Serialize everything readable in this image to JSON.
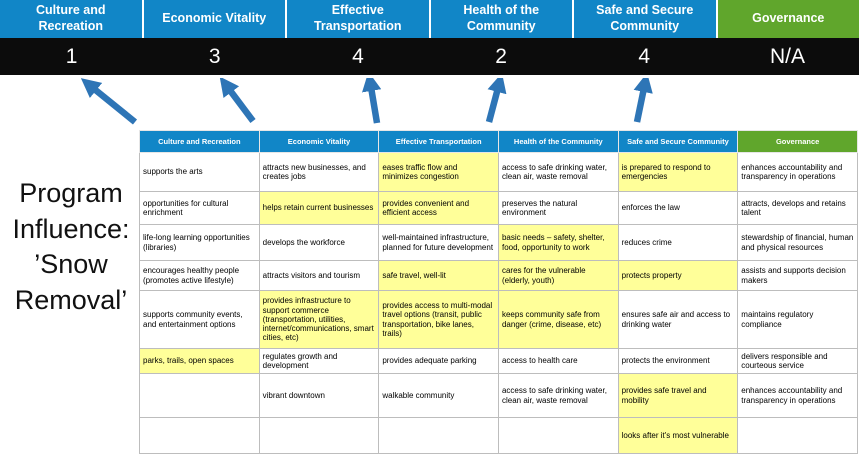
{
  "program": {
    "title": "Program\nInfluence:\n’Snow\nRemoval’"
  },
  "colors": {
    "header_blue": "#1186c7",
    "header_green": "#60a62c",
    "highlight_yellow": "#ffff99",
    "arrow_blue": "#2e75b6",
    "score_bar_black": "#0c0c0c"
  },
  "scoreboard": {
    "columns": [
      {
        "label": "Culture and Recreation",
        "score": "1",
        "style": "blue"
      },
      {
        "label": "Economic Vitality",
        "score": "3",
        "style": "blue"
      },
      {
        "label": "Effective Transportation",
        "score": "4",
        "style": "blue"
      },
      {
        "label": "Health of the Community",
        "score": "2",
        "style": "blue"
      },
      {
        "label": "Safe and Secure Community",
        "score": "4",
        "style": "blue"
      },
      {
        "label": "Governance",
        "score": "N/A",
        "style": "green"
      }
    ]
  },
  "matrix": {
    "headers": [
      {
        "label": "Culture and Recreation",
        "style": "blue"
      },
      {
        "label": "Economic Vitality",
        "style": "blue"
      },
      {
        "label": "Effective Transportation",
        "style": "blue"
      },
      {
        "label": "Health of the Community",
        "style": "blue"
      },
      {
        "label": "Safe and Secure Community",
        "style": "blue"
      },
      {
        "label": "Governance",
        "style": "green"
      }
    ],
    "rows": [
      [
        {
          "text": "supports the arts",
          "highlight": false
        },
        {
          "text": "attracts new businesses, and creates jobs",
          "highlight": false
        },
        {
          "text": "eases traffic flow and minimizes congestion",
          "highlight": true
        },
        {
          "text": "access to safe drinking water, clean air, waste removal",
          "highlight": false
        },
        {
          "text": "is prepared to respond to emergencies",
          "highlight": true
        },
        {
          "text": "enhances accountability and transparency in operations",
          "highlight": false
        }
      ],
      [
        {
          "text": "opportunities for cultural enrichment",
          "highlight": false
        },
        {
          "text": "helps retain current businesses",
          "highlight": true
        },
        {
          "text": "provides convenient and efficient access",
          "highlight": true
        },
        {
          "text": "preserves the natural environment",
          "highlight": false
        },
        {
          "text": "enforces the law",
          "highlight": false
        },
        {
          "text": "attracts, develops and retains talent",
          "highlight": false
        }
      ],
      [
        {
          "text": "life-long learning opportunities (libraries)",
          "highlight": false
        },
        {
          "text": "develops the workforce",
          "highlight": false
        },
        {
          "text": "well-maintained infrastructure, planned for future development",
          "highlight": false
        },
        {
          "text": "basic needs – safety, shelter, food, opportunity to work",
          "highlight": true
        },
        {
          "text": "reduces crime",
          "highlight": false
        },
        {
          "text": "stewardship of financial, human and physical resources",
          "highlight": false
        }
      ],
      [
        {
          "text": "encourages healthy people (promotes active lifestyle)",
          "highlight": false
        },
        {
          "text": "attracts visitors and tourism",
          "highlight": false
        },
        {
          "text": "safe travel, well-lit",
          "highlight": true
        },
        {
          "text": "cares for the vulnerable (elderly, youth)",
          "highlight": true
        },
        {
          "text": "protects property",
          "highlight": true
        },
        {
          "text": "assists and supports decision makers",
          "highlight": false
        }
      ],
      [
        {
          "text": "supports community events, and entertainment options",
          "highlight": false
        },
        {
          "text": "provides infrastructure to support commerce (transportation, utilities, internet/communications, smart cities, etc)",
          "highlight": true
        },
        {
          "text": "provides access to multi-modal travel options (transit, public transportation, bike lanes, trails)",
          "highlight": true
        },
        {
          "text": "keeps community safe from danger (crime, disease, etc)",
          "highlight": true
        },
        {
          "text": "ensures safe air and access to drinking water",
          "highlight": false
        },
        {
          "text": "maintains regulatory compliance",
          "highlight": false
        }
      ],
      [
        {
          "text": "parks, trails, open spaces",
          "highlight": true
        },
        {
          "text": "regulates growth and development",
          "highlight": false
        },
        {
          "text": "provides adequate parking",
          "highlight": false
        },
        {
          "text": "access to health care",
          "highlight": false
        },
        {
          "text": "protects the environment",
          "highlight": false
        },
        {
          "text": "delivers responsible and courteous service",
          "highlight": false
        }
      ],
      [
        {
          "text": "",
          "highlight": false
        },
        {
          "text": "vibrant downtown",
          "highlight": false
        },
        {
          "text": "walkable community",
          "highlight": false
        },
        {
          "text": "access to safe drinking water, clean air, waste removal",
          "highlight": false
        },
        {
          "text": "provides safe travel and mobility",
          "highlight": true
        },
        {
          "text": "enhances accountability and transparency in operations",
          "highlight": false
        }
      ],
      [
        {
          "text": "",
          "highlight": false
        },
        {
          "text": "",
          "highlight": false
        },
        {
          "text": "",
          "highlight": false
        },
        {
          "text": "",
          "highlight": false
        },
        {
          "text": "looks after it's most vulnerable",
          "highlight": true
        },
        {
          "text": "",
          "highlight": false
        }
      ]
    ]
  }
}
